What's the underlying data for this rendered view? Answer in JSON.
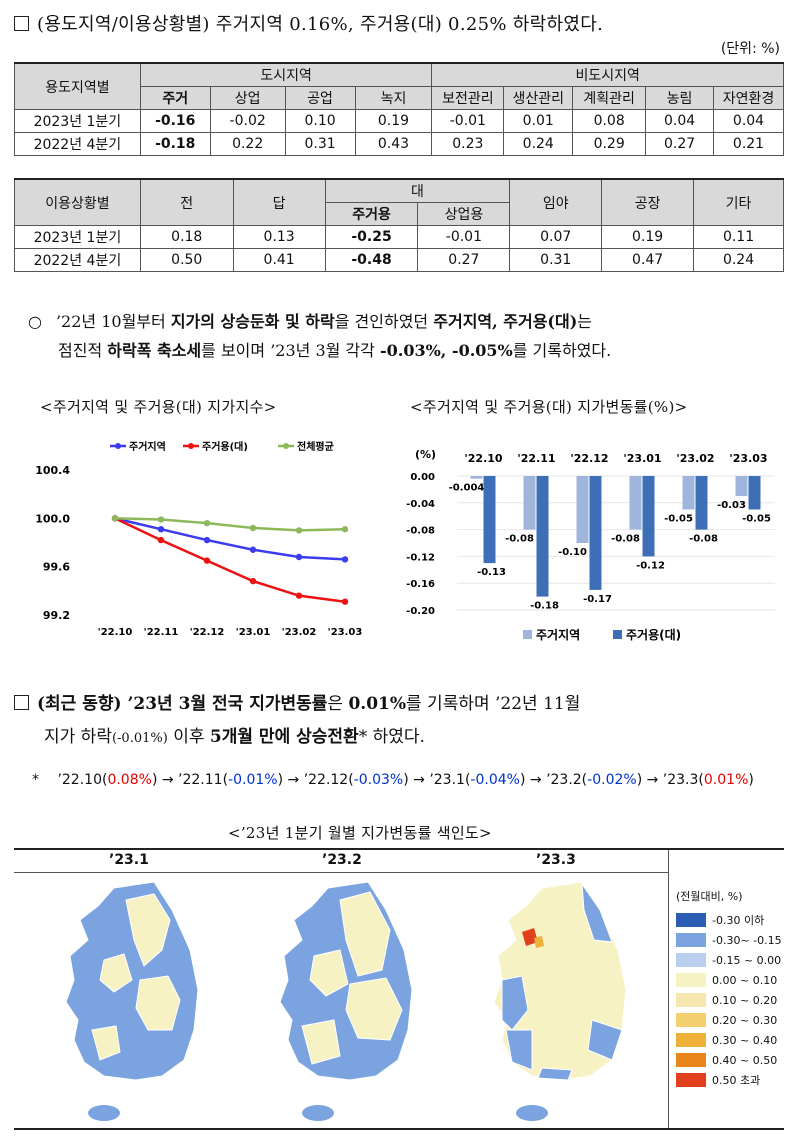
{
  "section1": {
    "title": "(용도지역/이용상황별) 주거지역 0.16%, 주거용(대) 0.25% 하락하였다.",
    "unit": "(단위: %)"
  },
  "table1": {
    "row_header": "용도지역별",
    "group_urban": "도시지역",
    "group_nonurban": "비도시지역",
    "columns": [
      "주거",
      "상업",
      "공업",
      "녹지",
      "보전관리",
      "생산관리",
      "계획관리",
      "농림",
      "자연환경"
    ],
    "rows": [
      {
        "label": "2023년 1분기",
        "values": [
          "-0.16",
          "-0.02",
          "0.10",
          "0.19",
          "-0.01",
          "0.01",
          "0.08",
          "0.04",
          "0.04"
        ]
      },
      {
        "label": "2022년 4분기",
        "values": [
          "-0.18",
          "0.22",
          "0.31",
          "0.43",
          "0.23",
          "0.24",
          "0.29",
          "0.27",
          "0.21"
        ]
      }
    ]
  },
  "table2": {
    "row_header": "이용상황별",
    "columns": [
      "전",
      "답",
      "대",
      "임야",
      "공장",
      "기타"
    ],
    "sub_columns": [
      "주거용",
      "상업용"
    ],
    "rows": [
      {
        "label": "2023년 1분기",
        "values": [
          "0.18",
          "0.13",
          "-0.25",
          "-0.01",
          "0.07",
          "0.19",
          "0.11"
        ]
      },
      {
        "label": "2022년 4분기",
        "values": [
          "0.50",
          "0.41",
          "-0.48",
          "0.27",
          "0.31",
          "0.47",
          "0.24"
        ]
      }
    ]
  },
  "para1": {
    "line1_a": "’22년 10월부터 ",
    "line1_b": "지가의 상승둔화 및 하락",
    "line1_c": "을 견인하였던 ",
    "line1_d": "주거지역, 주거용(대)",
    "line1_e": "는",
    "line2_a": "점진적 ",
    "line2_b": "하락폭 축소세",
    "line2_c": "를 보이며 ’23년 3월 각각 ",
    "line2_d": "-0.03%, -0.05%",
    "line2_e": "를 기록하였다."
  },
  "chart_left_title": "<주거지역 및 주거용(대) 지가지수>",
  "chart_right_title": "<주거지역 및 주거용(대) 지가변동률(%)>",
  "chart_data": [
    {
      "type": "line",
      "categories": [
        "'22.10",
        "'22.11",
        "'22.12",
        "'23.01",
        "'23.02",
        "'23.03"
      ],
      "series": [
        {
          "name": "주거지역",
          "values": [
            100.0,
            99.91,
            99.82,
            99.74,
            99.68,
            99.66
          ],
          "color": "#3b3bf0"
        },
        {
          "name": "주거용(대)",
          "values": [
            100.0,
            99.82,
            99.65,
            99.48,
            99.36,
            99.31
          ],
          "color": "#ee1111"
        },
        {
          "name": "전체평균",
          "values": [
            100.0,
            99.99,
            99.96,
            99.92,
            99.9,
            99.91
          ],
          "color": "#8db85a"
        }
      ],
      "ylim": [
        99.2,
        100.4
      ],
      "yticks": [
        "100.4",
        "100.0",
        "99.6",
        "99.2"
      ],
      "legend": "top"
    },
    {
      "type": "bar",
      "categories": [
        "'22.10",
        "'22.11",
        "'22.12",
        "'23.01",
        "'23.02",
        "'23.03"
      ],
      "series": [
        {
          "name": "주거지역",
          "values": [
            -0.004,
            -0.08,
            -0.1,
            -0.08,
            -0.05,
            -0.03
          ],
          "color": "#9fb5dc"
        },
        {
          "name": "주거용(대)",
          "values": [
            -0.13,
            -0.18,
            -0.17,
            -0.12,
            -0.08,
            -0.05
          ],
          "color": "#3d6fb6"
        }
      ],
      "labels": [
        [
          "-0.004",
          "-0.08",
          "-0.10",
          "-0.08",
          "-0.05",
          "-0.03"
        ],
        [
          "-0.13",
          "-0.18",
          "-0.17",
          "-0.12",
          "-0.08",
          "-0.05"
        ]
      ],
      "ylabel": "(%)",
      "ylim": [
        -0.2,
        0.0
      ],
      "yticks": [
        "0.00",
        "-0.04",
        "-0.08",
        "-0.12",
        "-0.16",
        "-0.20"
      ],
      "legend": "bottom"
    }
  ],
  "section2": {
    "line1_a": "(최근 동향) ",
    "line1_b": "’23년 3월 전국 지가변동률",
    "line1_c": "은 ",
    "line1_d": "0.01%",
    "line1_e": "를 기록하며 ’22년 11월",
    "line2_a": "지가 하락",
    "line2_b": "(-0.01%)",
    "line2_c": " 이후 ",
    "line2_d": "5개월 만에 상승전환",
    "line2_e": "* 하였다."
  },
  "footnote": {
    "star": "*",
    "items": [
      {
        "date": "’22.10",
        "val": "0.08%",
        "color": "red"
      },
      {
        "date": "’22.11",
        "val": "-0.01%",
        "color": "blue"
      },
      {
        "date": "’22.12",
        "val": "-0.03%",
        "color": "blue"
      },
      {
        "date": "’23.1",
        "val": "-0.04%",
        "color": "blue"
      },
      {
        "date": "’23.2",
        "val": "-0.02%",
        "color": "blue"
      },
      {
        "date": "’23.3",
        "val": "0.01%",
        "color": "red"
      }
    ]
  },
  "map_title": "<’23년 1분기 월별 지가변동률 색인도>",
  "maps": [
    "’23.1",
    "’23.2",
    "’23.3"
  ],
  "map_legend": {
    "title": "(전월대비, %)",
    "items": [
      {
        "label": "-0.30 이하",
        "color": "#2a5db3"
      },
      {
        "label": "-0.30~ -0.15",
        "color": "#7aa3e0"
      },
      {
        "label": "-0.15 ~ 0.00",
        "color": "#b9cdee"
      },
      {
        "label": "0.00 ~ 0.10",
        "color": "#f7f2c3"
      },
      {
        "label": "0.10 ~ 0.20",
        "color": "#f6e6b0"
      },
      {
        "label": "0.20 ~ 0.30",
        "color": "#f4cf6e"
      },
      {
        "label": "0.30 ~ 0.40",
        "color": "#f0b13b"
      },
      {
        "label": "0.40 ~ 0.50",
        "color": "#e8861c"
      },
      {
        "label": "0.50 초과",
        "color": "#e0401c"
      }
    ]
  }
}
